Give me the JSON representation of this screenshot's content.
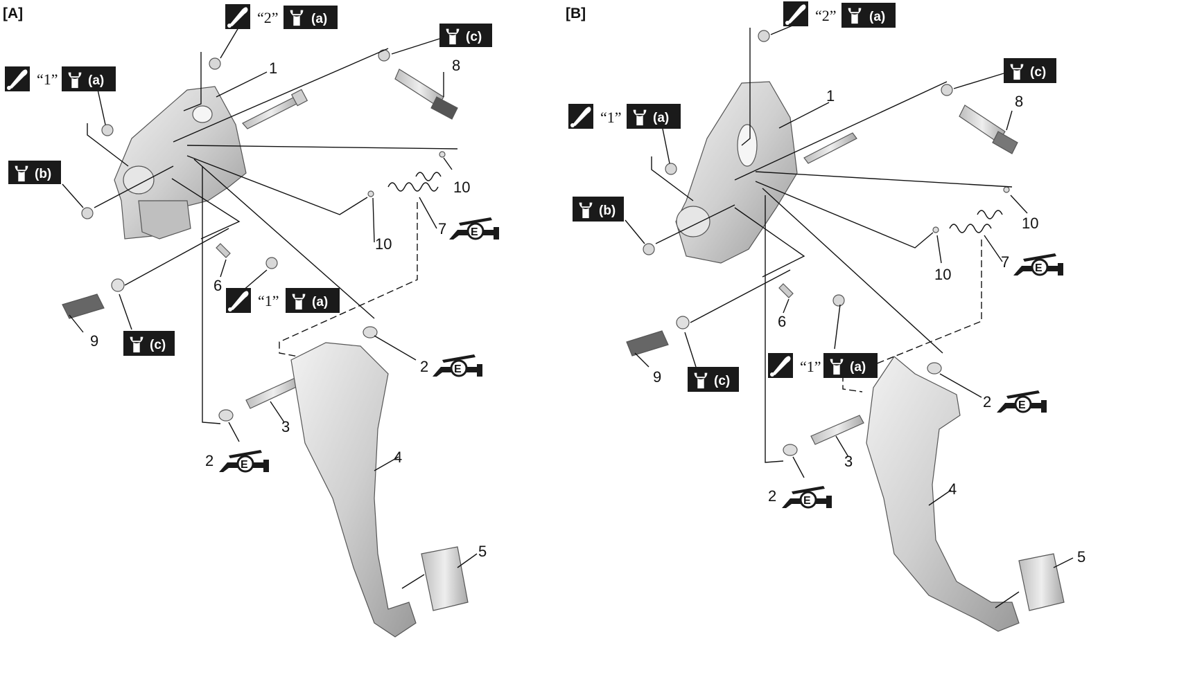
{
  "panels": [
    {
      "label": "[A]"
    },
    {
      "label": "[B]"
    }
  ],
  "callouts": {
    "n1": "1",
    "n2": "2",
    "n3": "3",
    "n4": "4",
    "n5": "5",
    "n6": "6",
    "n7": "7",
    "n8": "8",
    "n9": "9",
    "n10": "10"
  },
  "badges": {
    "a": "(a)",
    "b": "(b)",
    "c": "(c)",
    "q1": "“1”",
    "q2": "“2”",
    "e": "E"
  },
  "icons": {
    "wrench": "wrench-torque-icon",
    "grease": "grease-apply-icon",
    "lubricant": "lubricant-e-icon"
  },
  "colors": {
    "badge_bg": "#1a1a1a",
    "part_fill": "#d8d8d8",
    "line": "#111111"
  }
}
